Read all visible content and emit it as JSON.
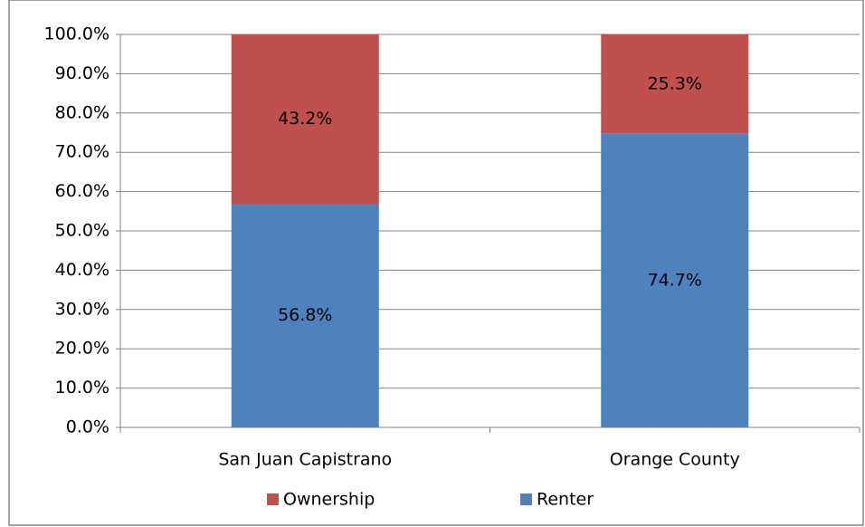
{
  "chart_data": {
    "type": "stacked_bar",
    "categories": [
      "San Juan Capistrano",
      "Orange County"
    ],
    "series": [
      {
        "name": "Ownership",
        "color": "#c0504d",
        "values": [
          43.2,
          25.3
        ],
        "value_labels": [
          "43.2%",
          "25.3%"
        ]
      },
      {
        "name": "Renter",
        "color": "#4f81bd",
        "values": [
          56.8,
          74.7
        ],
        "value_labels": [
          "56.8%",
          "74.7%"
        ]
      }
    ],
    "ylim": [
      0,
      100
    ],
    "yticks": [
      {
        "value": 0,
        "label": "0.0%"
      },
      {
        "value": 10,
        "label": "10.0%"
      },
      {
        "value": 20,
        "label": "20.0%"
      },
      {
        "value": 30,
        "label": "30.0%"
      },
      {
        "value": 40,
        "label": "40.0%"
      },
      {
        "value": 50,
        "label": "50.0%"
      },
      {
        "value": 60,
        "label": "60.0%"
      },
      {
        "value": 70,
        "label": "70.0%"
      },
      {
        "value": 80,
        "label": "80.0%"
      },
      {
        "value": 90,
        "label": "90.0%"
      },
      {
        "value": 100,
        "label": "100.0%"
      }
    ],
    "grid": true,
    "legend": "bottom"
  }
}
